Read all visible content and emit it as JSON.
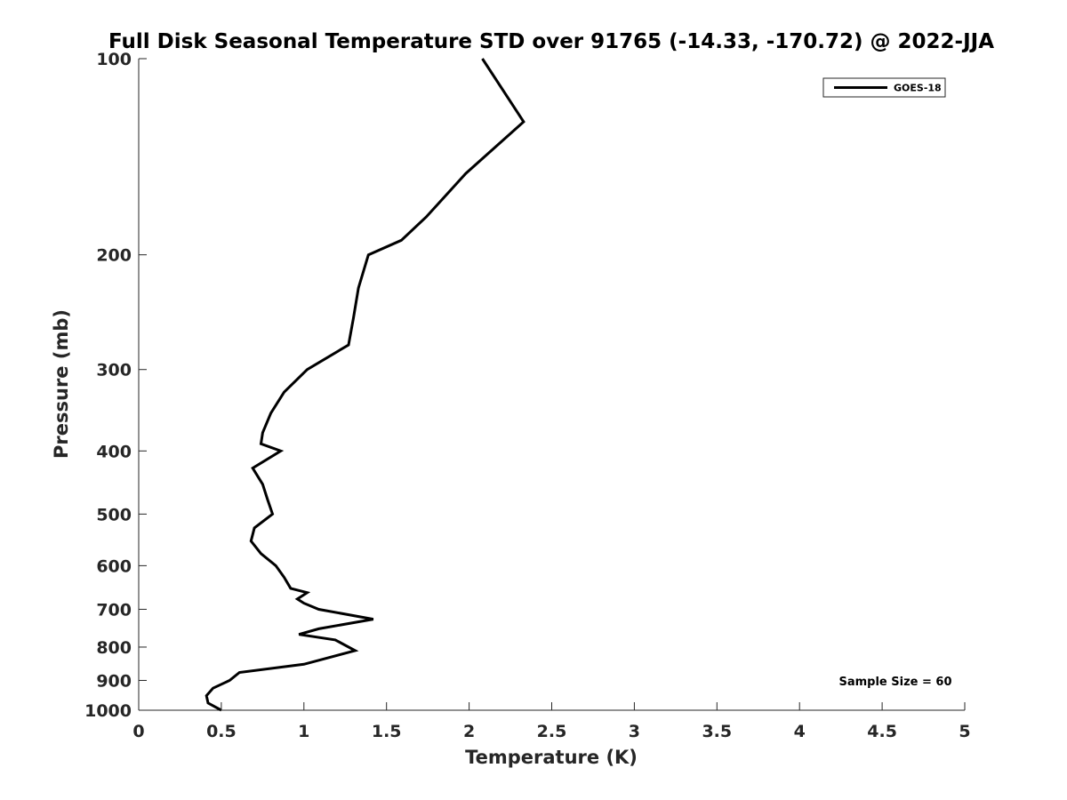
{
  "chart_data": {
    "type": "line",
    "title": "Full Disk Seasonal Temperature STD over 91765 (-14.33, -170.72) @ 2022-JJA",
    "xlabel": "Temperature (K)",
    "ylabel": "Pressure (mb)",
    "xlim": [
      0,
      5
    ],
    "ylim": [
      1000,
      100
    ],
    "y_scale": "log",
    "grid": false,
    "x_ticks": [
      "0",
      "0.5",
      "1",
      "1.5",
      "2",
      "2.5",
      "3",
      "3.5",
      "4",
      "4.5",
      "5"
    ],
    "y_ticks": [
      "100",
      "200",
      "300",
      "400",
      "500",
      "600",
      "700",
      "800",
      "900",
      "1000"
    ],
    "legend_position": "top-right",
    "annotation": "Sample Size = 60",
    "series": [
      {
        "name": "GOES-18",
        "color": "#000000",
        "points": [
          [
            2.08,
            100
          ],
          [
            2.33,
            125
          ],
          [
            1.98,
            150
          ],
          [
            1.74,
            175
          ],
          [
            1.59,
            190
          ],
          [
            1.39,
            200
          ],
          [
            1.33,
            225
          ],
          [
            1.3,
            250
          ],
          [
            1.27,
            275
          ],
          [
            1.02,
            300
          ],
          [
            0.88,
            325
          ],
          [
            0.8,
            350
          ],
          [
            0.75,
            375
          ],
          [
            0.74,
            390
          ],
          [
            0.86,
            400
          ],
          [
            0.69,
            425
          ],
          [
            0.75,
            450
          ],
          [
            0.78,
            475
          ],
          [
            0.81,
            500
          ],
          [
            0.7,
            525
          ],
          [
            0.68,
            550
          ],
          [
            0.74,
            575
          ],
          [
            0.83,
            600
          ],
          [
            0.88,
            625
          ],
          [
            0.92,
            650
          ],
          [
            1.02,
            660
          ],
          [
            0.96,
            675
          ],
          [
            1.0,
            685
          ],
          [
            1.09,
            700
          ],
          [
            1.42,
            725
          ],
          [
            1.09,
            750
          ],
          [
            0.97,
            765
          ],
          [
            1.19,
            780
          ],
          [
            1.31,
            810
          ],
          [
            1.0,
            850
          ],
          [
            0.61,
            875
          ],
          [
            0.55,
            900
          ],
          [
            0.45,
            925
          ],
          [
            0.41,
            950
          ],
          [
            0.42,
            975
          ],
          [
            0.5,
            1000
          ]
        ]
      }
    ]
  }
}
